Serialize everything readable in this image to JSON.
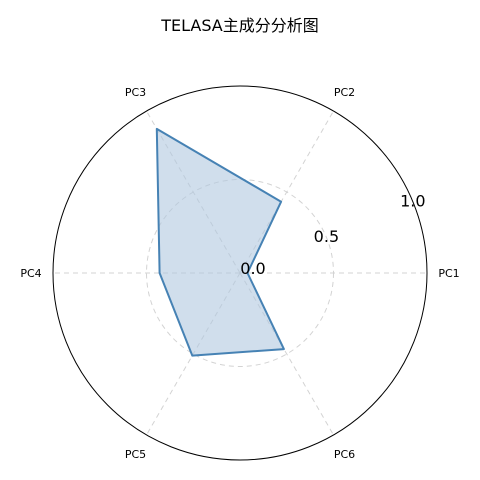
{
  "chart_data": {
    "type": "radar",
    "title": "TELASA主成分分析图",
    "categories": [
      "PC1",
      "PC2",
      "PC3",
      "PC4",
      "PC5",
      "PC6"
    ],
    "series": [
      {
        "values": [
          0.04,
          0.44,
          0.89,
          0.43,
          0.51,
          0.47
        ]
      }
    ],
    "rlim": [
      0,
      1.0
    ],
    "rticks": [
      "0.0",
      "0.5",
      "1.0"
    ],
    "grid": true,
    "colors": {
      "line": "#4682b4",
      "fill": "#b0c8e0",
      "grid": "#d3d3d3"
    }
  }
}
